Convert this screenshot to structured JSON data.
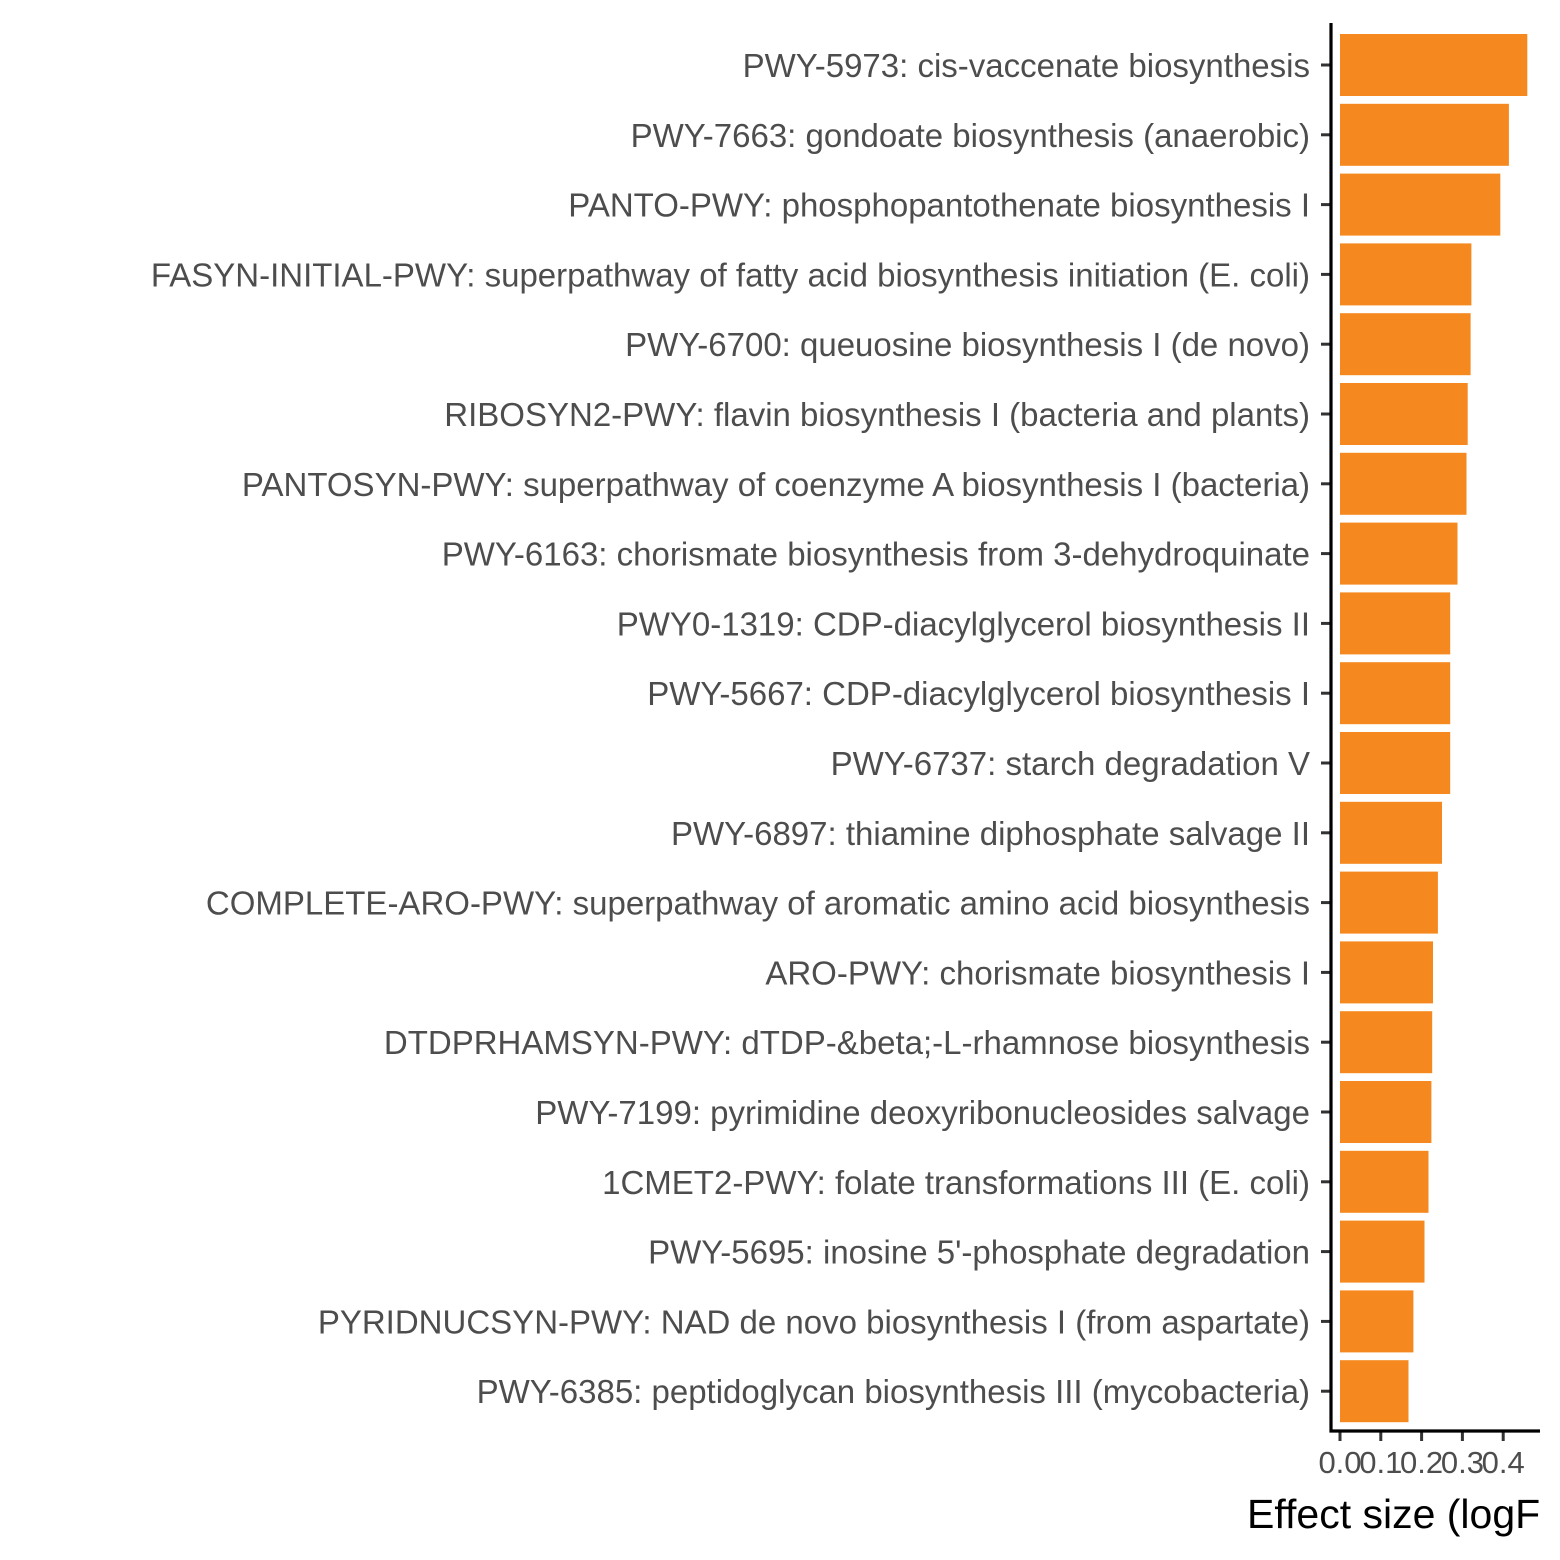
{
  "chart_data": {
    "type": "bar",
    "orientation": "horizontal",
    "categories": [
      "PWY-5973: cis-vaccenate biosynthesis",
      "PWY-7663: gondoate biosynthesis (anaerobic)",
      "PANTO-PWY: phosphopantothenate biosynthesis I",
      "FASYN-INITIAL-PWY: superpathway of fatty acid biosynthesis initiation (E. coli)",
      "PWY-6700: queuosine biosynthesis I (de novo)",
      "RIBOSYN2-PWY: flavin biosynthesis I (bacteria and plants)",
      "PANTOSYN-PWY: superpathway of coenzyme A biosynthesis I (bacteria)",
      "PWY-6163: chorismate biosynthesis from 3-dehydroquinate",
      "PWY0-1319: CDP-diacylglycerol biosynthesis II",
      "PWY-5667: CDP-diacylglycerol biosynthesis I",
      "PWY-6737: starch degradation V",
      "PWY-6897: thiamine diphosphate salvage II",
      "COMPLETE-ARO-PWY: superpathway of aromatic amino acid biosynthesis",
      "ARO-PWY: chorismate biosynthesis I",
      "DTDPRHAMSYN-PWY: dTDP-&beta;-L-rhamnose biosynthesis",
      "PWY-7199: pyrimidine deoxyribonucleosides salvage",
      "1CMET2-PWY: folate transformations III (E. coli)",
      "PWY-5695: inosine 5'-phosphate degradation",
      "PYRIDNUCSYN-PWY: NAD de novo biosynthesis I (from aspartate)",
      "PWY-6385: peptidoglycan biosynthesis III (mycobacteria)"
    ],
    "values": [
      0.459,
      0.414,
      0.393,
      0.322,
      0.32,
      0.313,
      0.31,
      0.288,
      0.27,
      0.27,
      0.27,
      0.25,
      0.24,
      0.228,
      0.226,
      0.224,
      0.217,
      0.207,
      0.18,
      0.168
    ],
    "xlabel": "Effect size (logF",
    "ylabel": "",
    "title": "",
    "xticks": [
      "0.0",
      "0.1",
      "0.2",
      "0.3",
      "0.4"
    ],
    "xtick_values": [
      0,
      0.1,
      0.2,
      0.3,
      0.4
    ],
    "xlim": [
      0,
      0.47
    ],
    "grid": false,
    "legend": "none",
    "bar_color": "#f5891f"
  }
}
